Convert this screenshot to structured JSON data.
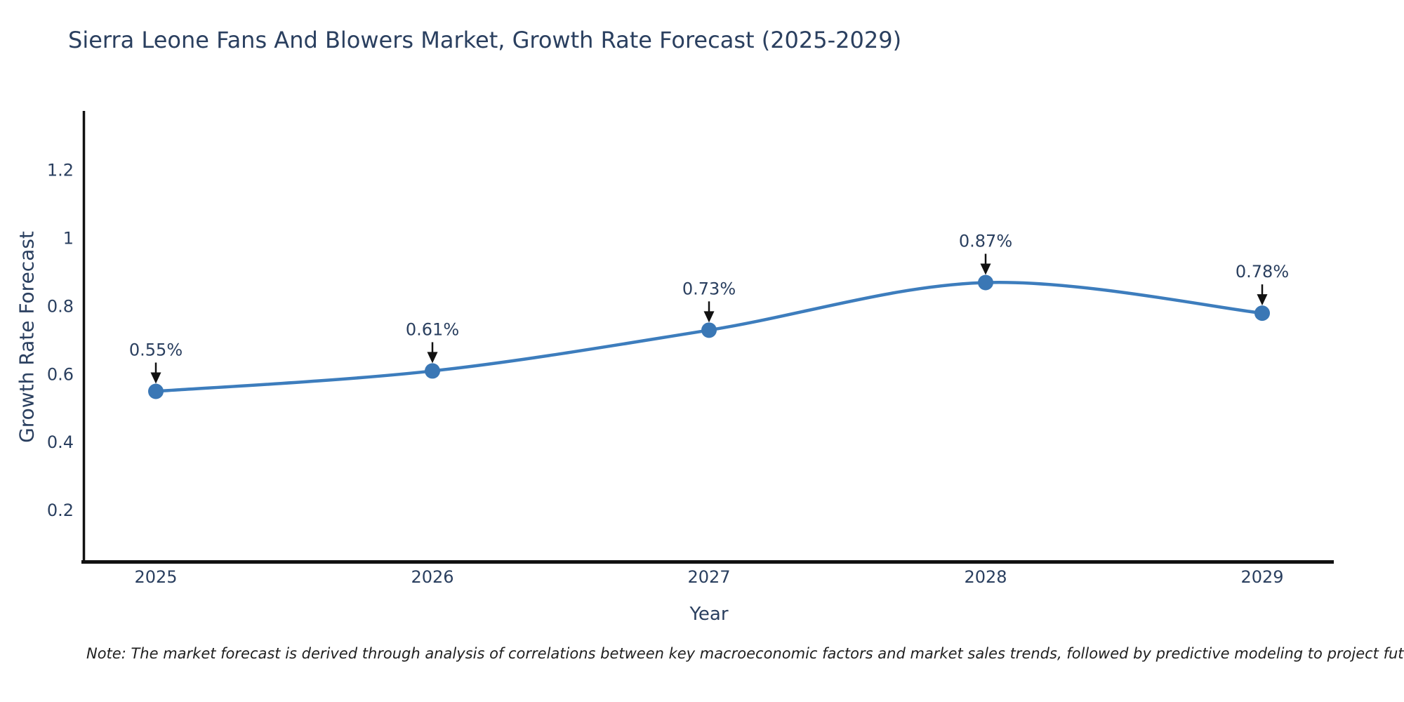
{
  "chart_data": {
    "type": "line",
    "line_shape": "spline",
    "title": "Sierra Leone Fans And Blowers Market, Growth Rate Forecast (2025-2029)",
    "xlabel": "Year",
    "ylabel": "Growth Rate Forecast",
    "categories": [
      "2025",
      "2026",
      "2027",
      "2028",
      "2029"
    ],
    "values": [
      0.55,
      0.61,
      0.73,
      0.87,
      0.78
    ],
    "point_labels": [
      "0.55%",
      "0.61%",
      "0.73%",
      "0.87%",
      "0.78%"
    ],
    "yticks": [
      0.2,
      0.4,
      0.6,
      0.8,
      1,
      1.2
    ],
    "ytick_labels": [
      "0.2",
      "0.4",
      "0.6",
      "0.8",
      "1",
      "1.2"
    ],
    "ylim": [
      0.05,
      1.38
    ],
    "grid": false,
    "legend": false,
    "colors": {
      "line": "#3d7dbd",
      "marker": "#3a77b5",
      "axis": "#111111",
      "arrow": "#111111",
      "text": "#2a3f5f"
    }
  },
  "note": "Note: The market forecast is derived through analysis of correlations between key macroeconomic factors and market sales trends, followed by predictive modeling to project future sales"
}
